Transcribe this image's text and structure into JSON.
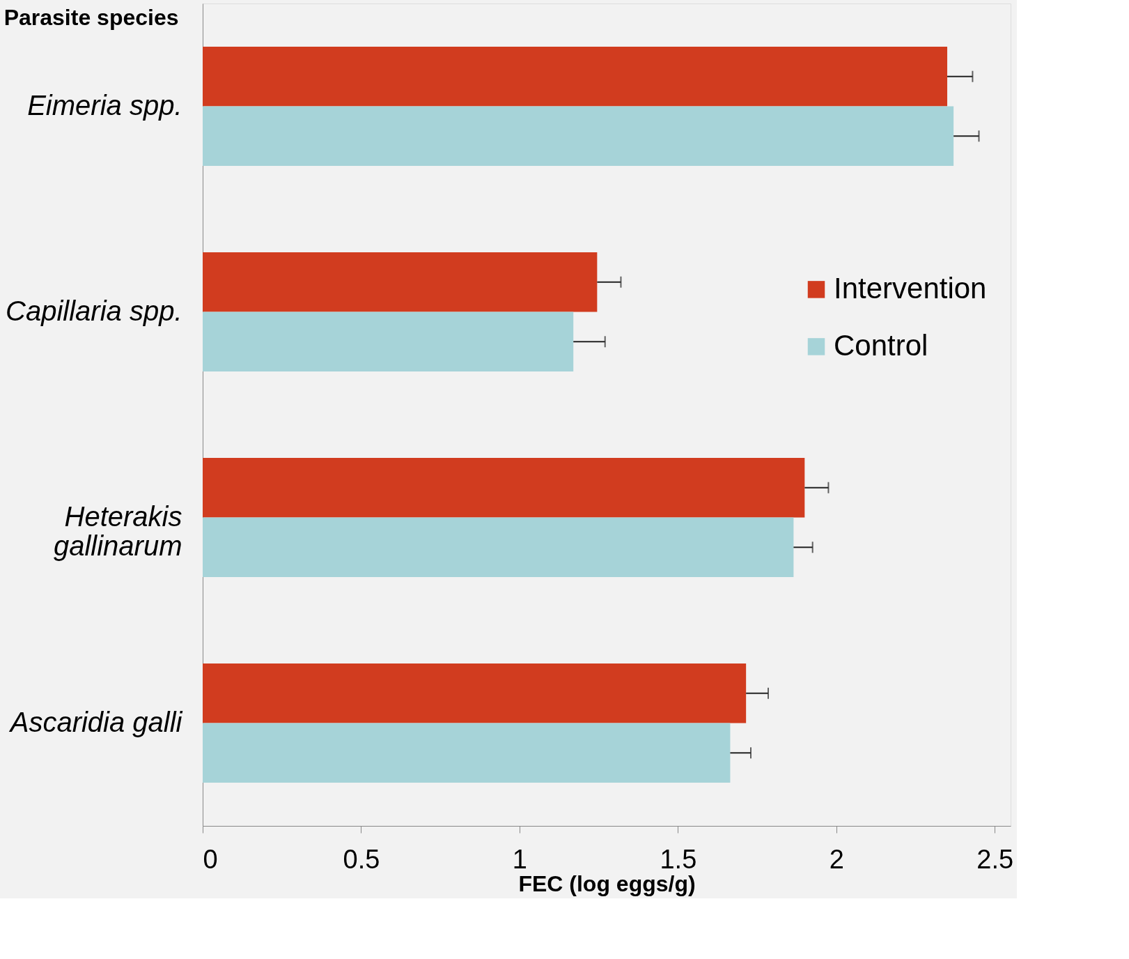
{
  "chart_data": {
    "type": "bar",
    "orientation": "horizontal",
    "ylabel": "Parasite species",
    "xlabel": "FEC (log eggs/g)",
    "categories": [
      "Eimeria spp.",
      "Capillaria spp.",
      "Heterakis gallinarum",
      "Ascaridia galli"
    ],
    "series": [
      {
        "name": "Intervention",
        "color": "#d13c1f",
        "values": [
          2.35,
          1.245,
          1.9,
          1.715
        ],
        "errors": [
          [
            2.35,
            2.43
          ],
          [
            1.245,
            1.32
          ],
          [
            1.9,
            1.975
          ],
          [
            1.715,
            1.785
          ]
        ]
      },
      {
        "name": "Control",
        "color": "#a6d3d8",
        "values": [
          2.37,
          1.17,
          1.865,
          1.665
        ],
        "errors": [
          [
            2.37,
            2.45
          ],
          [
            1.17,
            1.27
          ],
          [
            1.865,
            1.925
          ],
          [
            1.665,
            1.73
          ]
        ]
      }
    ],
    "xlim": [
      0,
      2.55
    ],
    "xticks": [
      0,
      0.5,
      1,
      1.5,
      2,
      2.5
    ],
    "grid": false,
    "legend": "right"
  }
}
